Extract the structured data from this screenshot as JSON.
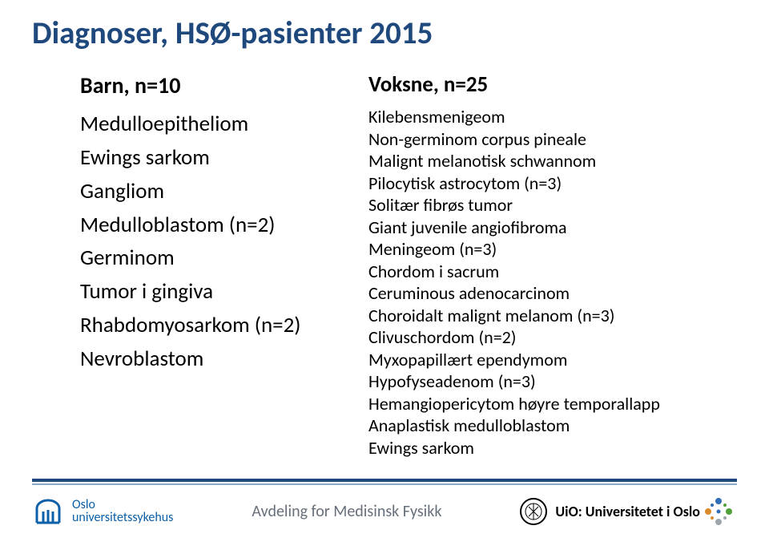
{
  "title": "Diagnoser, HSØ-pasienter 2015",
  "left": {
    "heading": "Barn, n=10",
    "items": [
      "Medulloepitheliom",
      "Ewings sarkom",
      "Gangliom",
      "Medulloblastom (n=2)",
      "Germinom",
      "Tumor i gingiva",
      "Rhabdomyosarkom (n=2)",
      "Nevroblastom"
    ]
  },
  "right": {
    "heading": "Voksne, n=25",
    "items": [
      "Kilebensmenigeom",
      "Non-germinom corpus pineale",
      "Malignt melanotisk schwannom",
      "Pilocytisk astrocytom (n=3)",
      "Solitær fibrøs tumor",
      "Giant juvenile angiofibroma",
      "Meningeom (n=3)",
      "Chordom i sacrum",
      "Ceruminous adenocarcinom",
      "Choroidalt malignt melanom (n=3)",
      "Clivuschordom (n=2)",
      "Myxopapillært ependymom",
      "Hypofyseadenom (n=3)",
      "Hemangiopericytom høyre temporallapp",
      "Anaplastisk medulloblastom",
      "Ewings sarkom"
    ]
  },
  "footer": {
    "oslo_line1": "Oslo",
    "oslo_line2": "universitetssykehus",
    "center": "Avdeling for Medisinsk Fysikk",
    "uio_prefix": "UiO",
    "uio_sep": ":",
    "uio_name": "Universitetet i Oslo"
  },
  "colors": {
    "title": "#1f497d",
    "rule_dark": "#1f497d",
    "rule_light": "#8fa9cc",
    "oslo_blue": "#0b60a9",
    "footer_text": "#666f7a",
    "dot_blue": "#2e6fb5",
    "dot_green": "#4ea03a",
    "dot_orange": "#d98a2b",
    "dot_grey": "#9ea6ad"
  }
}
